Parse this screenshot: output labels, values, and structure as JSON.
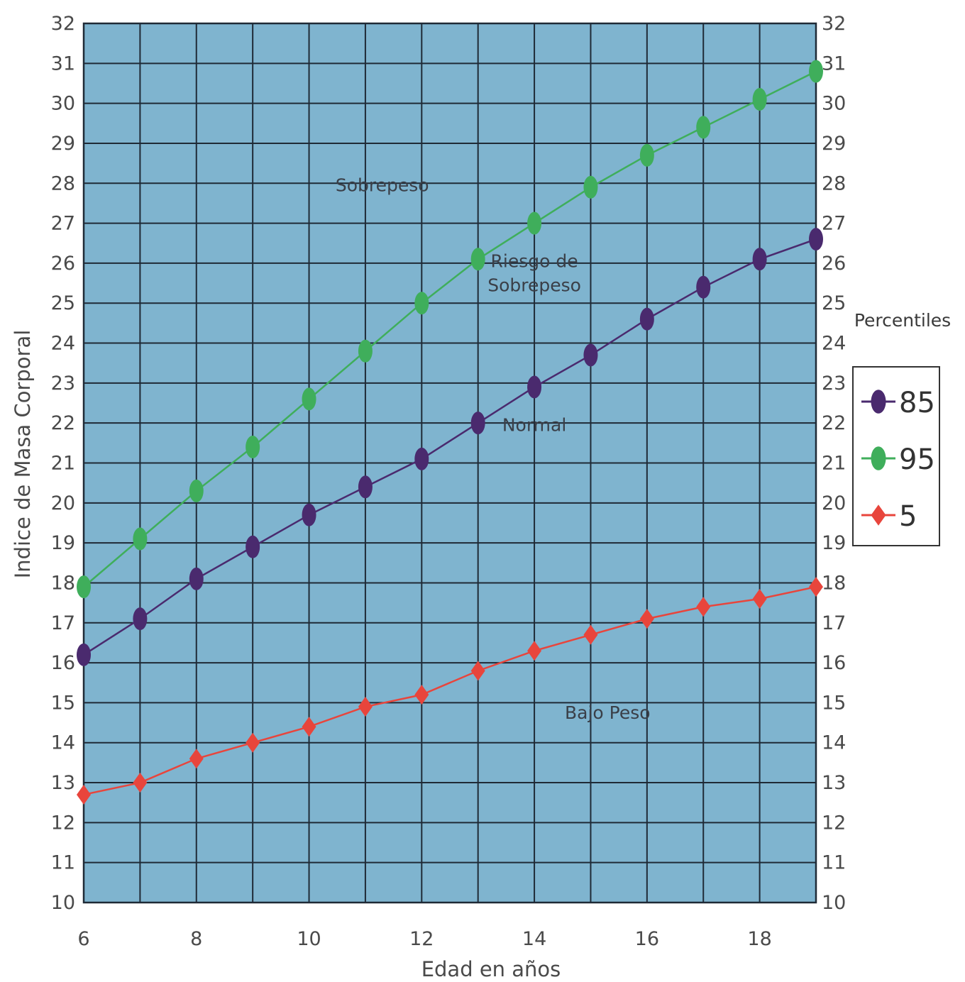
{
  "chart_data": {
    "type": "line",
    "ylabel": "Indice de Masa Corporal",
    "xlabel": "Edad en años",
    "x": [
      6,
      7,
      8,
      9,
      10,
      11,
      12,
      13,
      14,
      15,
      16,
      17,
      18,
      19
    ],
    "x_tick_labels": [
      "6",
      "8",
      "10",
      "12",
      "14",
      "16",
      "18"
    ],
    "y_tick_labels": [
      "10",
      "11",
      "12",
      "13",
      "14",
      "15",
      "16",
      "17",
      "18",
      "19",
      "20",
      "21",
      "22",
      "23",
      "24",
      "25",
      "26",
      "27",
      "28",
      "29",
      "30",
      "31",
      "32"
    ],
    "xlim": [
      6,
      19
    ],
    "ylim": [
      10,
      32
    ],
    "grid": true,
    "legend_title": "Percentiles",
    "legend_position": "right",
    "series": [
      {
        "name": "85",
        "color": "#4a2a6e",
        "marker": "circle",
        "values": [
          16.2,
          17.1,
          18.1,
          18.9,
          19.7,
          20.4,
          21.1,
          22.0,
          22.9,
          23.7,
          24.6,
          25.4,
          26.1,
          26.6
        ]
      },
      {
        "name": "95",
        "color": "#3fae5b",
        "marker": "circle",
        "values": [
          17.9,
          19.1,
          20.3,
          21.4,
          22.6,
          23.8,
          25.0,
          26.1,
          27.0,
          27.9,
          28.7,
          29.4,
          30.1,
          30.8
        ]
      },
      {
        "name": "5",
        "color": "#e8453c",
        "marker": "diamond",
        "values": [
          12.7,
          13.0,
          13.6,
          14.0,
          14.4,
          14.9,
          15.2,
          15.8,
          16.3,
          16.7,
          17.1,
          17.4,
          17.6,
          17.9
        ]
      }
    ],
    "annotations": [
      {
        "text": "Sobrepeso",
        "x": 11.3,
        "y": 27.8
      },
      {
        "text": "Riesgo de",
        "x": 14.0,
        "y": 25.9
      },
      {
        "text": "Sobrepeso",
        "x": 14.0,
        "y": 25.3
      },
      {
        "text": "Normal",
        "x": 14.0,
        "y": 21.8
      },
      {
        "text": "Bajo Peso",
        "x": 15.3,
        "y": 14.6
      }
    ],
    "colors": {
      "plot_background": "#7fb4cf",
      "grid": "#1f2a36"
    }
  }
}
